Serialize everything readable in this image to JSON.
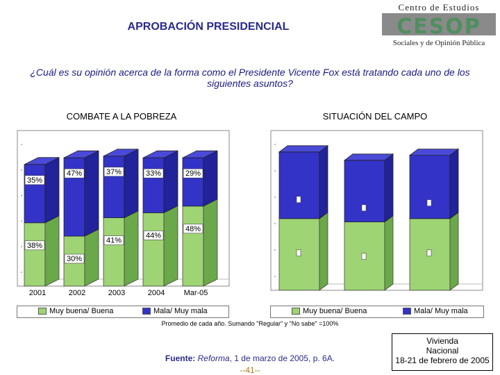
{
  "header": {
    "title": "APROBACIÓN PRESIDENCIAL"
  },
  "logo": {
    "line1": "Centro de Estudios",
    "mark": "CESOP",
    "line2": "Sociales y de Opinión Pública"
  },
  "question": "¿Cuál es su opinión acerca de la forma como el Presidente Vicente Fox está tratando cada uno de los siguientes asuntos?",
  "colors": {
    "green": "#9ed474",
    "blue": "#3333c8",
    "blue_dark": "#22229a",
    "green_dark": "#6aa84a"
  },
  "chart_data": [
    {
      "type": "bar",
      "stacked": true,
      "title": "COMBATE A LA POBREZA",
      "categories": [
        "2001",
        "2002",
        "2003",
        "2004",
        "Mar-05"
      ],
      "ylim": [
        0,
        100
      ],
      "series": [
        {
          "name": "Muy buena/ Buena",
          "values": [
            38,
            30,
            41,
            44,
            48
          ],
          "labels": [
            "38%",
            "30%",
            "41%",
            "44%",
            "48%"
          ]
        },
        {
          "name": "Mala/ Muy mala",
          "values": [
            35,
            47,
            37,
            33,
            29
          ],
          "labels": [
            "35%",
            "47%",
            "37%",
            "33%",
            "29%"
          ]
        }
      ]
    },
    {
      "type": "bar",
      "stacked": true,
      "title": "SITUACIÓN DEL CAMPO",
      "categories": [
        "",
        "",
        ""
      ],
      "ylim": [
        0,
        100
      ],
      "series": [
        {
          "name": "Muy buena/ Buena",
          "values": [
            43,
            41,
            43
          ]
        },
        {
          "name": "Mala/ Muy mala",
          "values": [
            40,
            37,
            38
          ]
        }
      ]
    }
  ],
  "footnote": "Promedio de cada año. Sumando \"Regular\" y \"No sabe\" =100%",
  "source": {
    "label": "Fuente:",
    "publication": "Reforma",
    "rest": ", 1 de marzo de 2005, p. 6A."
  },
  "page_number": "--41--",
  "box": {
    "line1": "Vivienda",
    "line2": "Nacional",
    "line3": "18-21 de febrero de 2005"
  }
}
